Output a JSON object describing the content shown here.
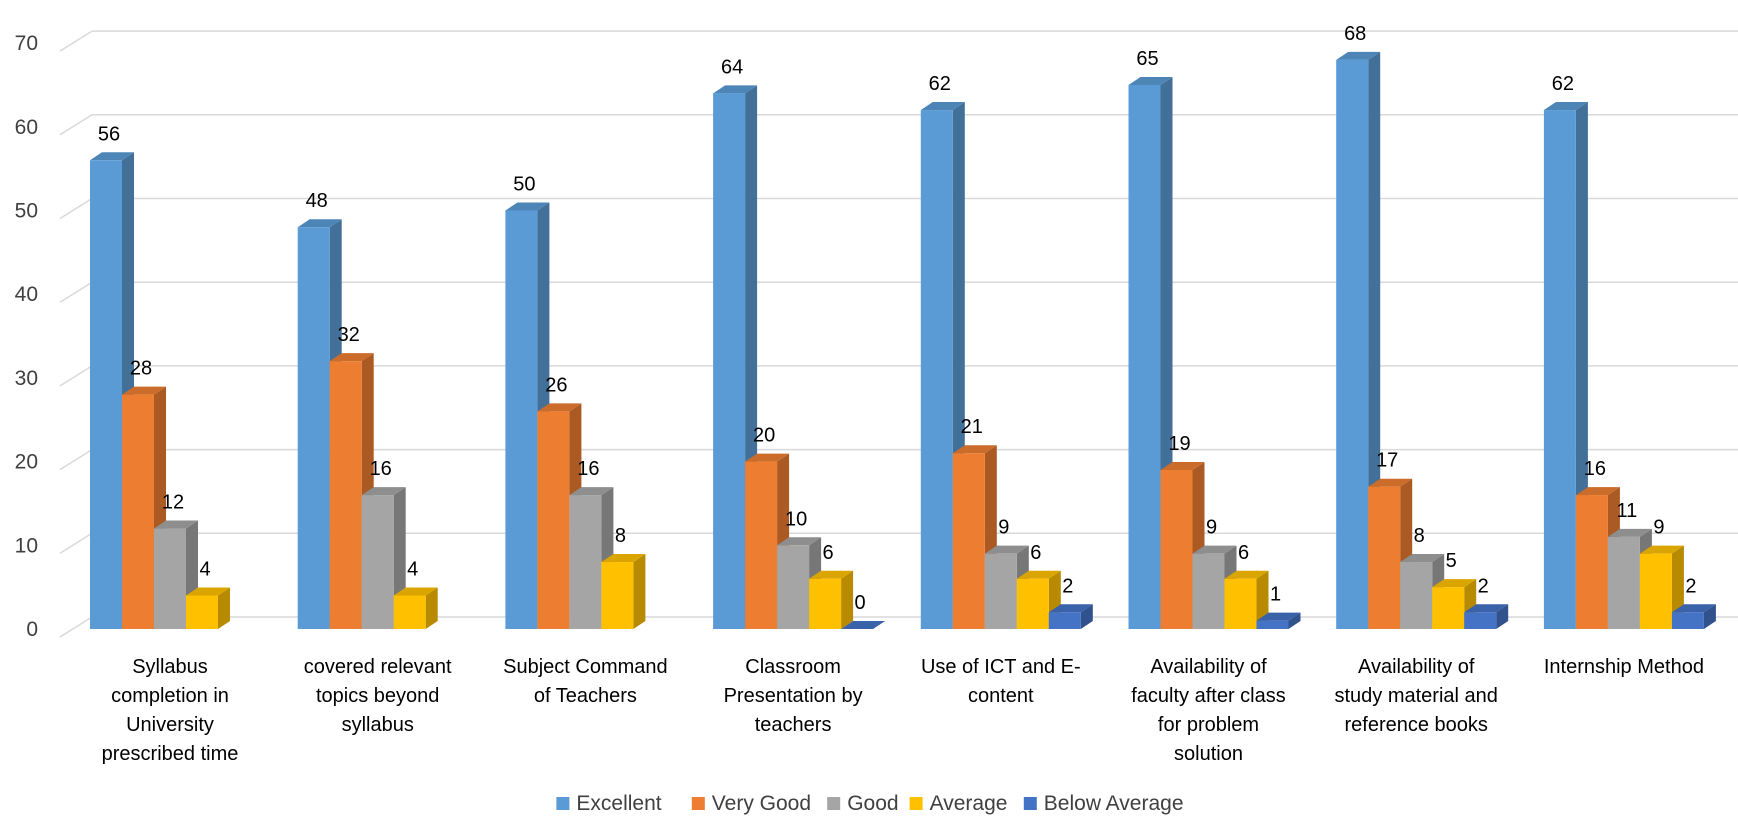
{
  "chart_data": {
    "type": "bar",
    "title": "",
    "xlabel": "",
    "ylabel": "",
    "ylim": [
      0,
      70
    ],
    "yticks": [
      0,
      10,
      20,
      30,
      40,
      50,
      60,
      70
    ],
    "grid": true,
    "legend_position": "bottom",
    "categories": [
      [
        "Syllabus",
        "completion in",
        "University",
        "prescribed time"
      ],
      [
        "covered relevant",
        "topics beyond",
        "syllabus"
      ],
      [
        "Subject Command",
        "of Teachers"
      ],
      [
        "Classroom",
        "Presentation by",
        "teachers"
      ],
      [
        "Use of ICT and E-",
        "content"
      ],
      [
        "Availability of",
        "faculty after class",
        "for problem",
        "solution"
      ],
      [
        "Availability of",
        "study material and",
        "reference books"
      ],
      [
        "Internship Method"
      ]
    ],
    "series": [
      {
        "name": "Excellent",
        "color": "#5B9BD5",
        "values": [
          56,
          48,
          50,
          64,
          62,
          65,
          68,
          62
        ]
      },
      {
        "name": "Very Good",
        "color": "#ED7D31",
        "values": [
          28,
          32,
          26,
          20,
          21,
          19,
          17,
          16
        ]
      },
      {
        "name": "Good",
        "color": "#A5A5A5",
        "values": [
          12,
          16,
          16,
          10,
          9,
          9,
          8,
          11
        ]
      },
      {
        "name": "Average",
        "color": "#FFC000",
        "values": [
          4,
          4,
          8,
          6,
          6,
          6,
          5,
          9
        ]
      },
      {
        "name": "Below Average",
        "color": "#4472C4",
        "values": [
          null,
          null,
          null,
          0,
          2,
          1,
          2,
          2
        ]
      }
    ]
  }
}
